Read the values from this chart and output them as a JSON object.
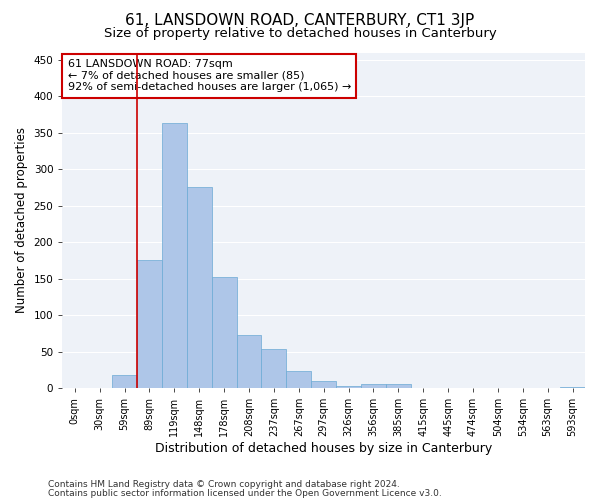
{
  "title": "61, LANSDOWN ROAD, CANTERBURY, CT1 3JP",
  "subtitle": "Size of property relative to detached houses in Canterbury",
  "xlabel": "Distribution of detached houses by size in Canterbury",
  "ylabel": "Number of detached properties",
  "bar_color": "#aec6e8",
  "bar_edge_color": "#6aaad4",
  "categories": [
    "0sqm",
    "30sqm",
    "59sqm",
    "89sqm",
    "119sqm",
    "148sqm",
    "178sqm",
    "208sqm",
    "237sqm",
    "267sqm",
    "297sqm",
    "326sqm",
    "356sqm",
    "385sqm",
    "415sqm",
    "445sqm",
    "474sqm",
    "504sqm",
    "534sqm",
    "563sqm",
    "593sqm"
  ],
  "values": [
    0,
    0,
    18,
    175,
    363,
    275,
    152,
    73,
    53,
    24,
    9,
    3,
    5,
    5,
    0,
    0,
    0,
    0,
    0,
    0,
    1
  ],
  "vline_x": 2.5,
  "vline_color": "#cc0000",
  "annotation_text": "61 LANSDOWN ROAD: 77sqm\n← 7% of detached houses are smaller (85)\n92% of semi-detached houses are larger (1,065) →",
  "ylim": [
    0,
    460
  ],
  "yticks": [
    0,
    50,
    100,
    150,
    200,
    250,
    300,
    350,
    400,
    450
  ],
  "footer_line1": "Contains HM Land Registry data © Crown copyright and database right 2024.",
  "footer_line2": "Contains public sector information licensed under the Open Government Licence v3.0.",
  "background_color": "#eef2f8",
  "grid_color": "#ffffff",
  "title_fontsize": 11,
  "subtitle_fontsize": 9.5,
  "tick_fontsize": 7,
  "ylabel_fontsize": 8.5,
  "xlabel_fontsize": 9,
  "annotation_fontsize": 8,
  "footer_fontsize": 6.5
}
